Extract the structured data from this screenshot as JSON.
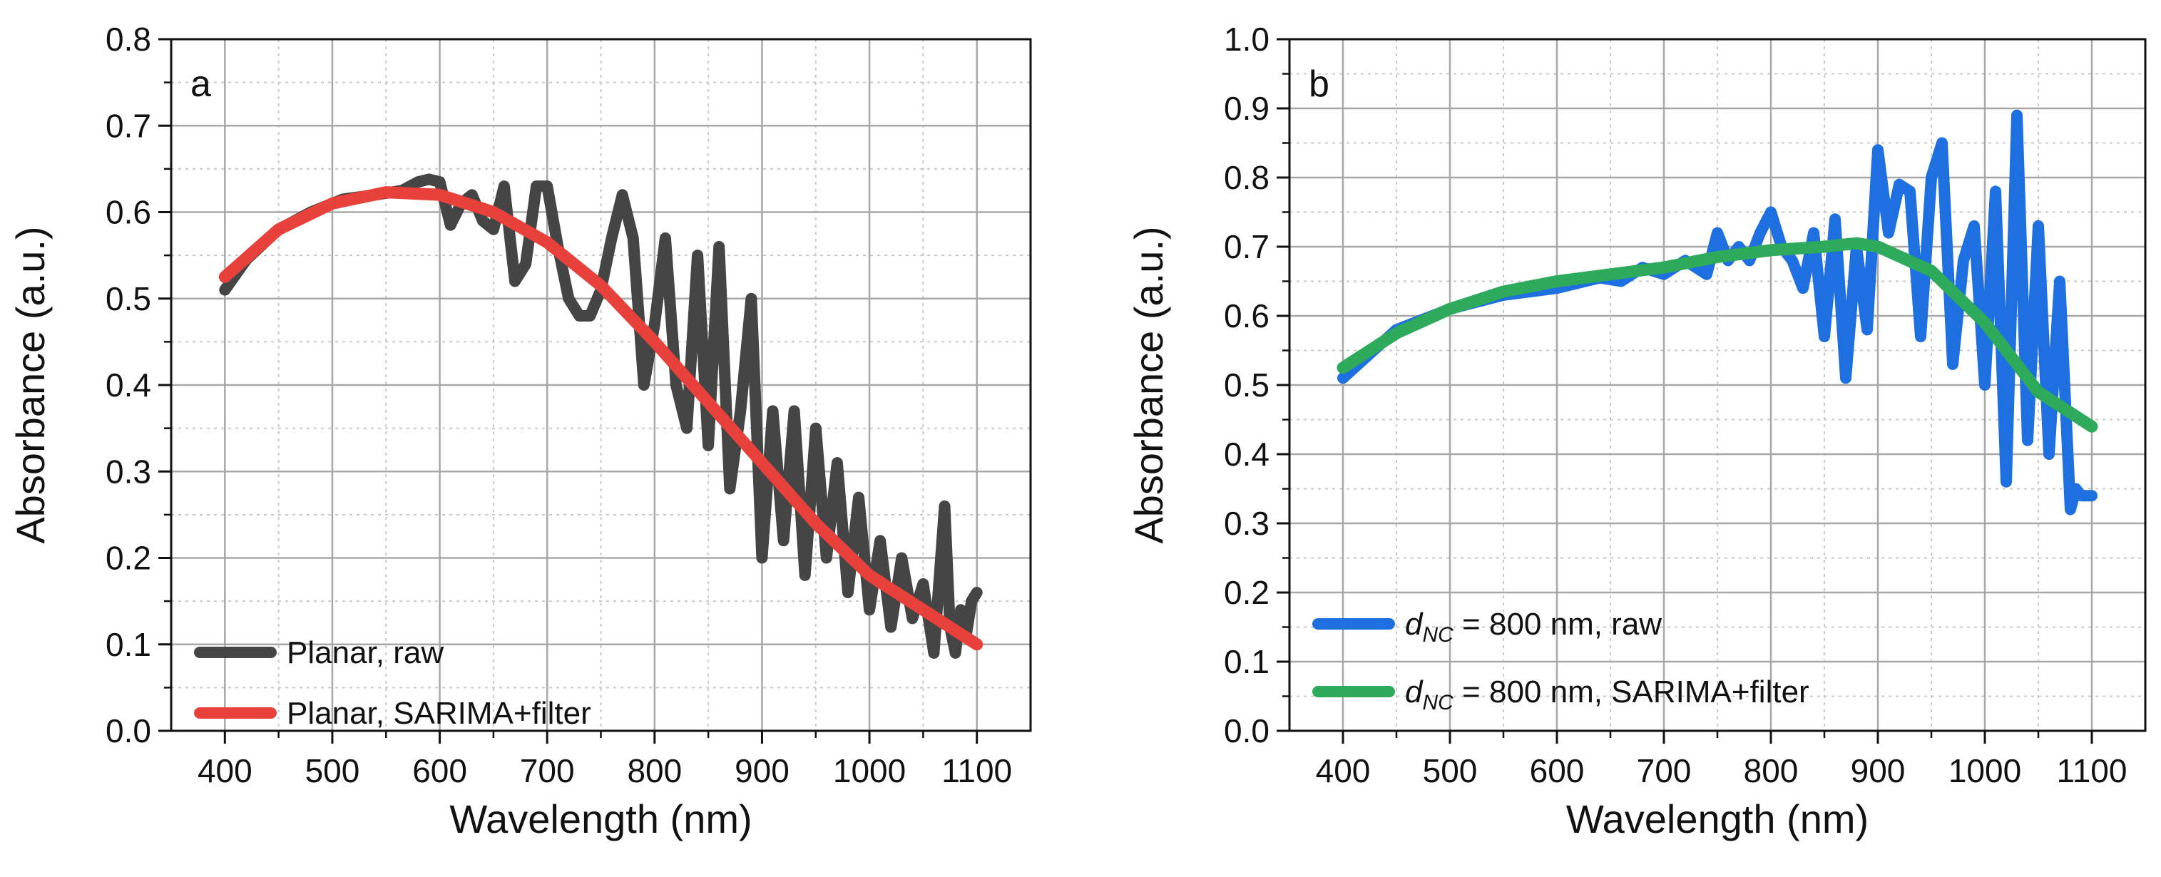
{
  "figure": {
    "panels_count": 2
  },
  "chart_data": [
    {
      "type": "line",
      "panel_label": "a",
      "xlabel": "Wavelength (nm)",
      "ylabel": "Absorbance (a.u.)",
      "xlim": [
        350,
        1150
      ],
      "ylim": [
        0.0,
        0.8
      ],
      "x_ticks": [
        400,
        500,
        600,
        700,
        800,
        900,
        1000,
        1100
      ],
      "y_ticks": [
        0.0,
        0.1,
        0.2,
        0.3,
        0.4,
        0.5,
        0.6,
        0.7,
        0.8
      ],
      "x_tick_labels": [
        "400",
        "500",
        "600",
        "700",
        "800",
        "900",
        "1000",
        "1100"
      ],
      "y_tick_labels": [
        "0.0",
        "0.1",
        "0.2",
        "0.3",
        "0.4",
        "0.5",
        "0.6",
        "0.7",
        "0.8"
      ],
      "grid": true,
      "legend_position": "bottom-left",
      "series": [
        {
          "name": "Planar, raw",
          "color": "#454545",
          "x": [
            400,
            420,
            450,
            480,
            510,
            540,
            565,
            580,
            590,
            600,
            610,
            620,
            630,
            640,
            650,
            660,
            670,
            680,
            690,
            700,
            710,
            720,
            730,
            740,
            750,
            760,
            770,
            780,
            790,
            800,
            810,
            820,
            830,
            840,
            850,
            860,
            870,
            880,
            890,
            900,
            910,
            920,
            930,
            940,
            950,
            960,
            970,
            980,
            990,
            1000,
            1010,
            1020,
            1030,
            1040,
            1050,
            1060,
            1070,
            1075,
            1080,
            1085,
            1090,
            1095,
            1100
          ],
          "values": [
            0.51,
            0.545,
            0.58,
            0.6,
            0.615,
            0.62,
            0.625,
            0.635,
            0.638,
            0.635,
            0.585,
            0.61,
            0.62,
            0.59,
            0.58,
            0.63,
            0.52,
            0.54,
            0.63,
            0.63,
            0.56,
            0.5,
            0.48,
            0.48,
            0.51,
            0.57,
            0.62,
            0.57,
            0.4,
            0.47,
            0.57,
            0.4,
            0.35,
            0.55,
            0.33,
            0.56,
            0.28,
            0.37,
            0.5,
            0.2,
            0.37,
            0.22,
            0.37,
            0.18,
            0.35,
            0.2,
            0.31,
            0.16,
            0.27,
            0.14,
            0.22,
            0.12,
            0.2,
            0.13,
            0.17,
            0.09,
            0.26,
            0.12,
            0.09,
            0.14,
            0.11,
            0.15,
            0.16
          ]
        },
        {
          "name": "Planar, SARIMA+filter",
          "color": "#e8403a",
          "x": [
            400,
            450,
            500,
            550,
            600,
            650,
            700,
            750,
            800,
            850,
            900,
            950,
            1000,
            1050,
            1100
          ],
          "values": [
            0.525,
            0.58,
            0.61,
            0.623,
            0.62,
            0.6,
            0.565,
            0.515,
            0.45,
            0.38,
            0.31,
            0.24,
            0.18,
            0.14,
            0.1
          ]
        }
      ]
    },
    {
      "type": "line",
      "panel_label": "b",
      "xlabel": "Wavelength (nm)",
      "ylabel": "Absorbance (a.u.)",
      "xlim": [
        350,
        1150
      ],
      "ylim": [
        0.0,
        1.0
      ],
      "x_ticks": [
        400,
        500,
        600,
        700,
        800,
        900,
        1000,
        1100
      ],
      "y_ticks": [
        0.0,
        0.1,
        0.2,
        0.3,
        0.4,
        0.5,
        0.6,
        0.7,
        0.8,
        0.9,
        1.0
      ],
      "x_tick_labels": [
        "400",
        "500",
        "600",
        "700",
        "800",
        "900",
        "1000",
        "1100"
      ],
      "y_tick_labels": [
        "0.0",
        "0.1",
        "0.2",
        "0.3",
        "0.4",
        "0.5",
        "0.6",
        "0.7",
        "0.8",
        "0.9",
        "1.0"
      ],
      "grid": true,
      "legend_position": "bottom-left",
      "series": [
        {
          "name": "d_NC = 800 nm, raw",
          "legend_parts": [
            "d",
            "NC",
            " = 800 nm, raw"
          ],
          "color": "#1e6fe0",
          "x": [
            400,
            450,
            500,
            550,
            600,
            640,
            660,
            680,
            700,
            720,
            740,
            750,
            760,
            770,
            780,
            790,
            800,
            810,
            820,
            830,
            840,
            850,
            860,
            870,
            880,
            890,
            900,
            910,
            920,
            930,
            940,
            950,
            960,
            970,
            980,
            990,
            1000,
            1010,
            1020,
            1030,
            1040,
            1050,
            1060,
            1070,
            1080,
            1085,
            1090,
            1100
          ],
          "values": [
            0.51,
            0.58,
            0.61,
            0.63,
            0.64,
            0.655,
            0.65,
            0.67,
            0.66,
            0.68,
            0.66,
            0.72,
            0.68,
            0.7,
            0.68,
            0.72,
            0.75,
            0.7,
            0.68,
            0.64,
            0.72,
            0.57,
            0.74,
            0.51,
            0.7,
            0.58,
            0.84,
            0.72,
            0.79,
            0.78,
            0.57,
            0.8,
            0.85,
            0.53,
            0.68,
            0.73,
            0.5,
            0.78,
            0.36,
            0.89,
            0.42,
            0.73,
            0.4,
            0.65,
            0.32,
            0.35,
            0.34,
            0.34
          ]
        },
        {
          "name": "d_NC = 800 nm, SARIMA+filter",
          "legend_parts": [
            "d",
            "NC",
            " = 800 nm, SARIMA+filter"
          ],
          "color": "#2eaa5c",
          "x": [
            400,
            450,
            500,
            550,
            600,
            650,
            700,
            750,
            800,
            850,
            880,
            900,
            950,
            1000,
            1050,
            1100
          ],
          "values": [
            0.525,
            0.575,
            0.61,
            0.635,
            0.65,
            0.66,
            0.67,
            0.685,
            0.695,
            0.7,
            0.705,
            0.7,
            0.665,
            0.59,
            0.49,
            0.44
          ]
        }
      ]
    }
  ]
}
